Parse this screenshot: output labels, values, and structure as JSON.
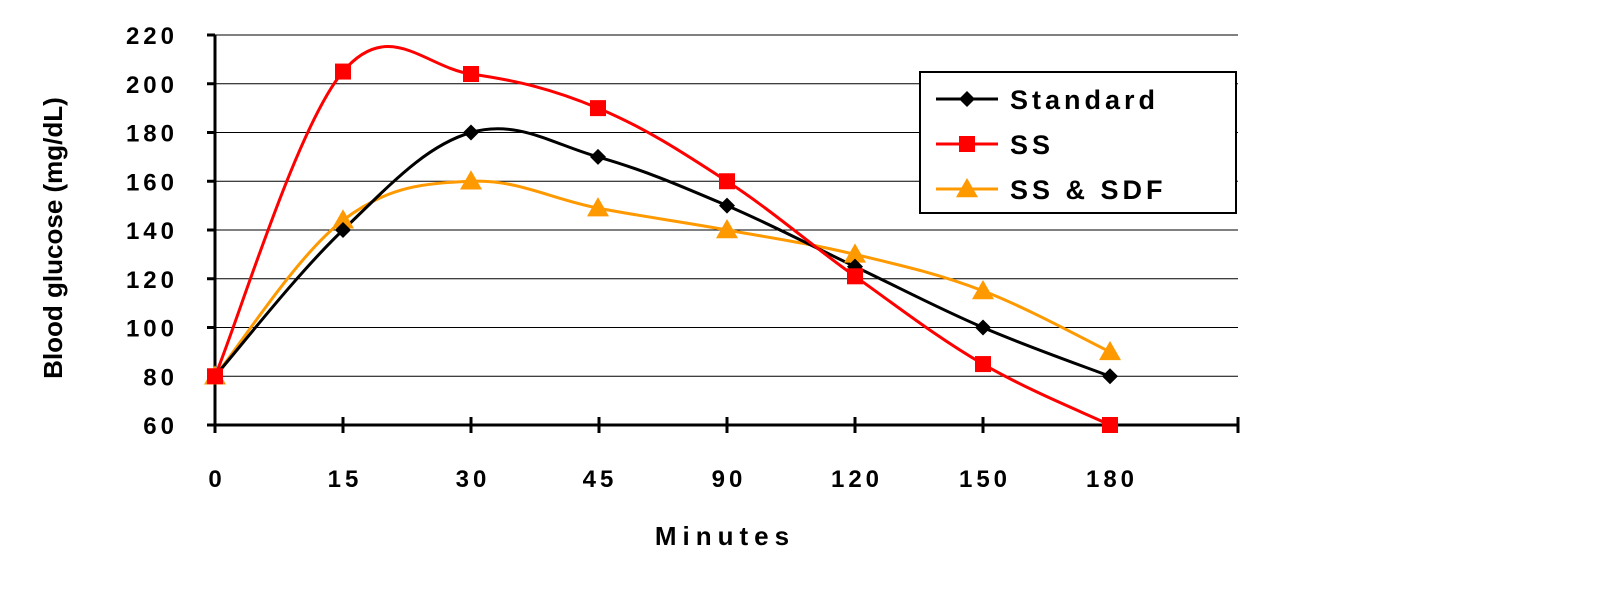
{
  "chart_data": {
    "type": "line",
    "xlabel": "Minutes",
    "ylabel": "Blood glucose (mg/dL)",
    "categories": [
      "0",
      "15",
      "30",
      "45",
      "90",
      "120",
      "150",
      "180"
    ],
    "ylim": [
      60,
      220
    ],
    "yticks": [
      60,
      80,
      100,
      120,
      140,
      160,
      180,
      200,
      220
    ],
    "grid": true,
    "legend_position": "top-right",
    "series": [
      {
        "name": "Standard",
        "values": [
          80,
          140,
          180,
          170,
          150,
          125,
          100,
          80
        ],
        "color": "#000000",
        "marker": "diamond"
      },
      {
        "name": "SS",
        "values": [
          80,
          205,
          204,
          190,
          160,
          121,
          85,
          60
        ],
        "color": "#ff0000",
        "marker": "square"
      },
      {
        "name": "SS & SDF",
        "values": [
          80,
          144,
          160,
          149,
          140,
          130,
          115,
          90
        ],
        "color": "#ff9900",
        "marker": "triangle"
      }
    ]
  }
}
